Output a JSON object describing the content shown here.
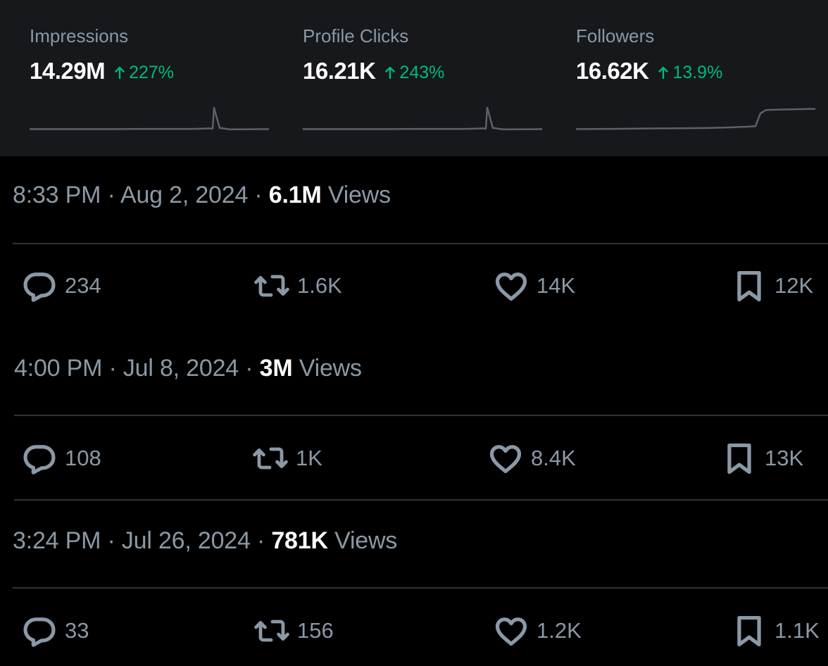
{
  "stats": [
    {
      "label": "Impressions",
      "value": "14.29M",
      "change": "227%",
      "trend": [
        0.05,
        0.05,
        0.05,
        0.05,
        0.06,
        0.06,
        0.06,
        0.07,
        0.08,
        0.07,
        1.0,
        0.1,
        0.04,
        0.05
      ]
    },
    {
      "label": "Profile Clicks",
      "value": "16.21K",
      "change": "243%",
      "trend": [
        0.05,
        0.05,
        0.05,
        0.05,
        0.06,
        0.06,
        0.06,
        0.07,
        0.08,
        0.07,
        1.0,
        0.1,
        0.04,
        0.05
      ]
    },
    {
      "label": "Followers",
      "value": "16.62K",
      "change": "13.9%",
      "trend": [
        0.05,
        0.06,
        0.07,
        0.08,
        0.09,
        0.1,
        0.12,
        0.14,
        0.16,
        0.18,
        0.75,
        0.9,
        0.92,
        0.95
      ]
    }
  ],
  "colors": {
    "panel_bg": "#16181c",
    "positive": "#00ba7c",
    "muted_text": "#8b98a5",
    "divider": "#2f3336"
  },
  "posts": [
    {
      "time": "8:33 PM",
      "date": "Aug 2, 2024",
      "views": "6.1M",
      "views_label": "Views",
      "replies": "234",
      "reposts": "1.6K",
      "likes": "14K",
      "bookmarks": "12K"
    },
    {
      "time": "4:00 PM",
      "date": "Jul 8, 2024",
      "views": "3M",
      "views_label": "Views",
      "replies": "108",
      "reposts": "1K",
      "likes": "8.4K",
      "bookmarks": "13K"
    },
    {
      "time": "3:24 PM",
      "date": "Jul 26, 2024",
      "views": "781K",
      "views_label": "Views",
      "replies": "33",
      "reposts": "156",
      "likes": "1.2K",
      "bookmarks": "1.1K"
    }
  ],
  "icons": {
    "reply": "reply-icon",
    "repost": "repost-icon",
    "like": "heart-icon",
    "bookmark": "bookmark-icon",
    "change": "arrow-up-icon"
  }
}
